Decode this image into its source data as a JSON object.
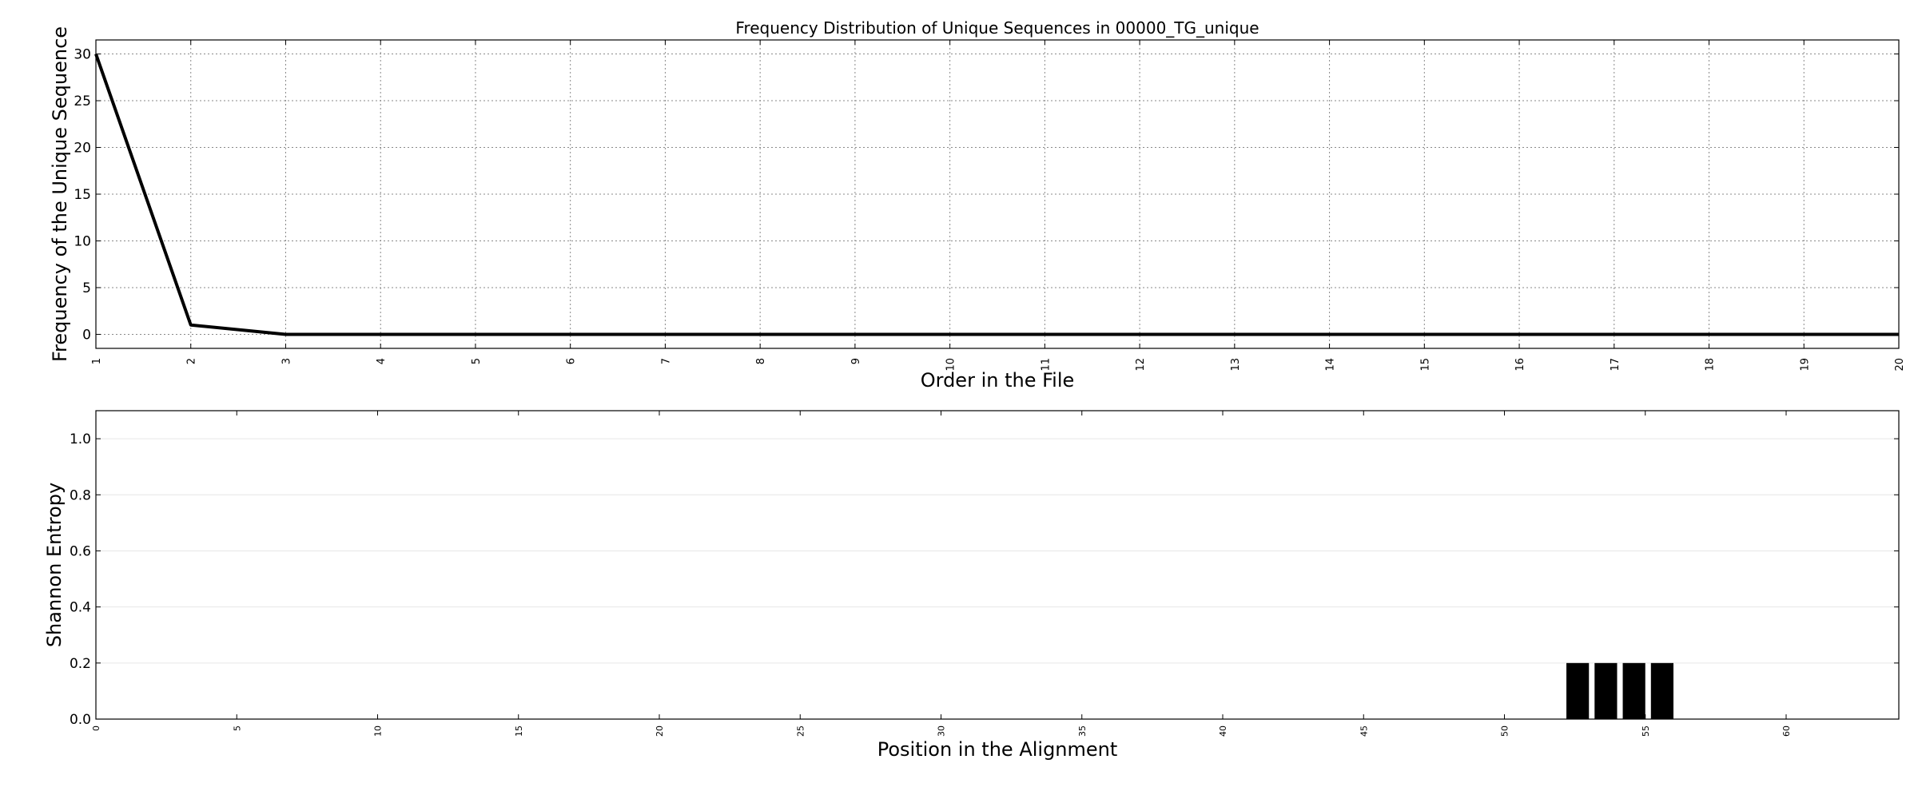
{
  "chart_data": [
    {
      "type": "line",
      "title": "Frequency Distribution of Unique Sequences in 00000_TG_unique",
      "xlabel": "Order in the File",
      "ylabel": "Frequency of the Unique Sequence",
      "xlim": [
        1,
        20
      ],
      "ylim": [
        -1.5,
        31.5
      ],
      "x_ticks": [
        1,
        2,
        3,
        4,
        5,
        6,
        7,
        8,
        9,
        10,
        11,
        12,
        13,
        14,
        15,
        16,
        17,
        18,
        19,
        20
      ],
      "y_ticks": [
        0,
        5,
        10,
        15,
        20,
        25,
        30
      ],
      "grid": true,
      "grid_style": "dotted",
      "line_color": "#000000",
      "x": [
        1,
        2,
        3,
        4,
        5,
        6,
        7,
        8,
        9,
        10,
        11,
        12,
        13,
        14,
        15,
        16,
        17,
        18,
        19,
        20
      ],
      "y": [
        30,
        1,
        0,
        0,
        0,
        0,
        0,
        0,
        0,
        0,
        0,
        0,
        0,
        0,
        0,
        0,
        0,
        0,
        0,
        0
      ]
    },
    {
      "type": "bar",
      "title": "",
      "xlabel": "Position in the Alignment",
      "ylabel": "Shannon Entropy",
      "xlim": [
        0,
        64
      ],
      "ylim": [
        0,
        1.1
      ],
      "x_ticks": [
        0,
        5,
        10,
        15,
        20,
        25,
        30,
        35,
        40,
        45,
        50,
        55,
        60
      ],
      "y_ticks": [
        0.0,
        0.2,
        0.4,
        0.6,
        0.8,
        1.0
      ],
      "y_tick_labels": [
        "0.0",
        "0.2",
        "0.4",
        "0.6",
        "0.8",
        "1.0"
      ],
      "grid": true,
      "grid_style": "faint",
      "bar_color": "#000000",
      "positions": [
        52,
        53,
        54,
        55
      ],
      "values": [
        0.2,
        0.2,
        0.2,
        0.2
      ]
    }
  ]
}
